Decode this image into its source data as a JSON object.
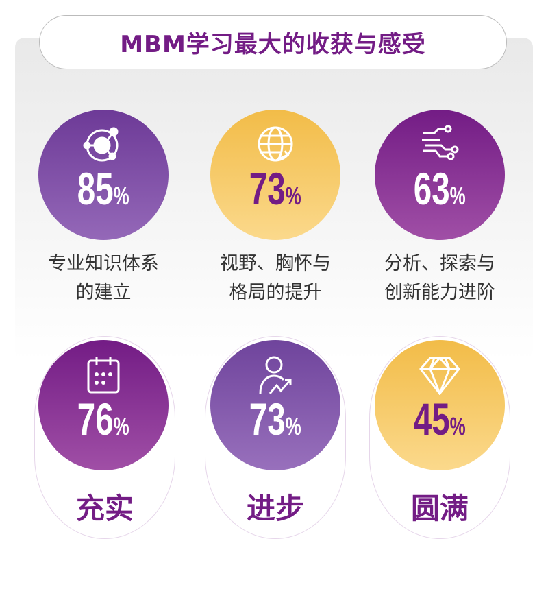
{
  "title": "MBM学习最大的收获与感受",
  "colors": {
    "purple": "#6d3a97",
    "magenta": "#731c85",
    "gold": "#f2bc48",
    "text": "#333333"
  },
  "top_items": [
    {
      "value": "85",
      "unit": "%",
      "label_line1": "专业知识体系",
      "label_line2": "的建立",
      "icon": "orbit-network-icon"
    },
    {
      "value": "73",
      "unit": "%",
      "label_line1": "视野、胸怀与",
      "label_line2": "格局的提升",
      "icon": "globe-arrow-icon"
    },
    {
      "value": "63",
      "unit": "%",
      "label_line1": "分析、探索与",
      "label_line2": "创新能力进阶",
      "icon": "circuit-lines-icon"
    }
  ],
  "bottom_items": [
    {
      "value": "76",
      "unit": "%",
      "label": "充实",
      "icon": "calendar-icon"
    },
    {
      "value": "73",
      "unit": "%",
      "label": "进步",
      "icon": "person-growth-icon"
    },
    {
      "value": "45",
      "unit": "%",
      "label": "圆满",
      "icon": "diamond-icon"
    }
  ]
}
